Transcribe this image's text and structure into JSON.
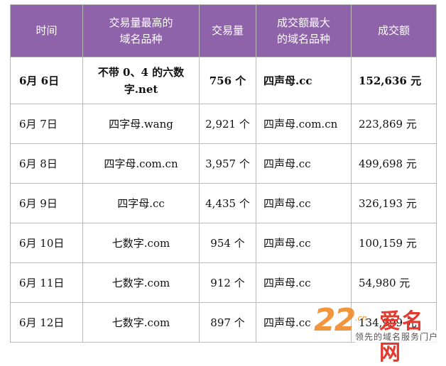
{
  "table": {
    "headers": {
      "date": "时间",
      "top_category_line1": "交易量最高的",
      "top_category_line2": "域名品种",
      "volume": "交易量",
      "top_amount_category_line1": "成交额最大",
      "top_amount_category_line2": "的域名品种",
      "amount": "成交额"
    },
    "rows": [
      {
        "date": "6月 6日",
        "top_category_line1": "不带 0、4 的六数",
        "top_category_line2": "字.net",
        "volume": "756 个",
        "top_amount_category": "四声母.cc",
        "amount": "152,636 元"
      },
      {
        "date": "6月 7日",
        "top_category": "四字母.wang",
        "volume": "2,921 个",
        "top_amount_category": "四声母.com.cn",
        "amount": "223,869 元"
      },
      {
        "date": "6月 8日",
        "top_category": "四字母.com.cn",
        "volume": "3,957 个",
        "top_amount_category": "四声母.cc",
        "amount": "499,698 元"
      },
      {
        "date": "6月 9日",
        "top_category": "四字母.cc",
        "volume": "4,435 个",
        "top_amount_category": "四声母.cc",
        "amount": "326,193 元"
      },
      {
        "date": "6月 10日",
        "top_category": "七数字.com",
        "volume": "954 个",
        "top_amount_category": "四声母.cc",
        "amount": "100,159 元"
      },
      {
        "date": "6月 11日",
        "top_category": "七数字.com",
        "volume": "912 个",
        "top_amount_category": "四声母.cc",
        "amount": "54,980 元"
      },
      {
        "date": "6月 12日",
        "top_category": "七数字.com",
        "volume": "897 个",
        "top_amount_category": "四声母.cc",
        "amount": "134,999 元"
      }
    ]
  },
  "watermark": {
    "number": "22",
    "cn": ".cn",
    "name": "爱名网",
    "slogan": "领先的域名服务门户"
  },
  "colors": {
    "header_bg": "#8f63aa",
    "header_text": "#ffffff",
    "watermark_orange": "#f08a2a",
    "watermark_red": "#e23a2e"
  }
}
